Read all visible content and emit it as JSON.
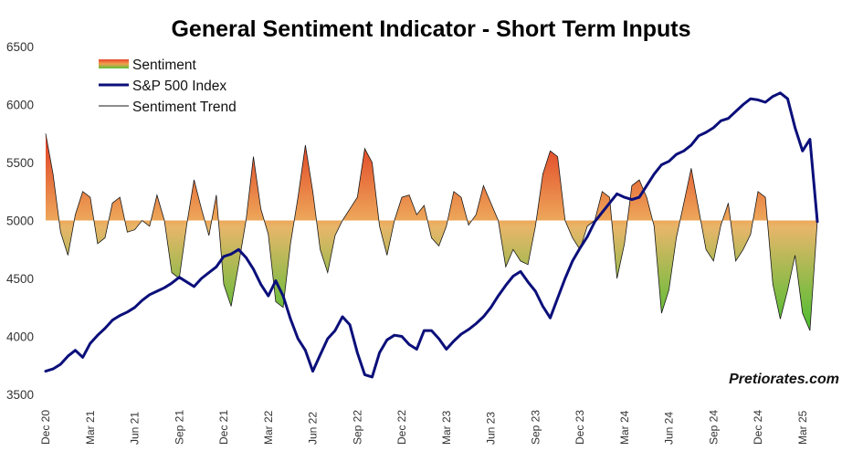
{
  "chart_data": {
    "type": "line",
    "title": "General Sentiment Indicator - Short Term Inputs",
    "watermark": "Pretiorates.com",
    "ylim": [
      3500,
      6500
    ],
    "yticks": [
      3500,
      4000,
      4500,
      5000,
      5500,
      6000,
      6500
    ],
    "sentiment_baseline": 5000,
    "xlim": [
      "2020-12",
      "2025-04"
    ],
    "xticks": [
      {
        "x": 0,
        "label": "Dec 20"
      },
      {
        "x": 3,
        "label": "Mar 21"
      },
      {
        "x": 6,
        "label": "Jun 21"
      },
      {
        "x": 9,
        "label": "Sep 21"
      },
      {
        "x": 12,
        "label": "Dec 21"
      },
      {
        "x": 15,
        "label": "Mar 22"
      },
      {
        "x": 18,
        "label": "Jun 22"
      },
      {
        "x": 21,
        "label": "Sep 22"
      },
      {
        "x": 24,
        "label": "Dec 22"
      },
      {
        "x": 27,
        "label": "Mar 23"
      },
      {
        "x": 30,
        "label": "Jun 23"
      },
      {
        "x": 33,
        "label": "Sep 23"
      },
      {
        "x": 36,
        "label": "Dec 23"
      },
      {
        "x": 39,
        "label": "Mar 24"
      },
      {
        "x": 42,
        "label": "Jun 24"
      },
      {
        "x": 45,
        "label": "Sep 24"
      },
      {
        "x": 48,
        "label": "Dec 24"
      },
      {
        "x": 51,
        "label": "Mar 25"
      }
    ],
    "legend": {
      "placement": "top-left",
      "entries": [
        "Sentiment",
        "S&P 500 Index",
        "Sentiment Trend"
      ]
    },
    "colors": {
      "sp500": "#0b0f7a",
      "trend": "#1a1a1a",
      "sentiment_high": "#e0341e",
      "sentiment_mid": "#eda85a",
      "sentiment_low": "#3cbf2a",
      "legend_swatch": [
        "#e8452a",
        "#f0a050",
        "#5dc13a"
      ]
    },
    "series": [
      {
        "name": "S&P 500 Index",
        "x": [
          0,
          0.5,
          1,
          1.5,
          2,
          2.5,
          3,
          3.5,
          4,
          4.5,
          5,
          5.5,
          6,
          6.5,
          7,
          7.5,
          8,
          8.5,
          9,
          9.5,
          10,
          10.5,
          11,
          11.5,
          12,
          12.5,
          13,
          13.5,
          14,
          14.5,
          15,
          15.5,
          16,
          16.5,
          17,
          17.5,
          18,
          18.5,
          19,
          19.5,
          20,
          20.5,
          21,
          21.5,
          22,
          22.5,
          23,
          23.5,
          24,
          24.5,
          25,
          25.5,
          26,
          26.5,
          27,
          27.5,
          28,
          28.5,
          29,
          29.5,
          30,
          30.5,
          31,
          31.5,
          32,
          32.5,
          33,
          33.5,
          34,
          34.5,
          35,
          35.5,
          36,
          36.5,
          37,
          37.5,
          38,
          38.5,
          39,
          39.5,
          40,
          40.5,
          41,
          41.5,
          42,
          42.5,
          43,
          43.5,
          44,
          44.5,
          45,
          45.5,
          46,
          46.5,
          47,
          47.5,
          48,
          48.5,
          49,
          49.5,
          50,
          50.5,
          51,
          51.5,
          52
        ],
        "values": [
          3700,
          3720,
          3760,
          3830,
          3880,
          3820,
          3940,
          4010,
          4070,
          4140,
          4180,
          4210,
          4250,
          4310,
          4360,
          4390,
          4420,
          4460,
          4510,
          4470,
          4430,
          4500,
          4550,
          4600,
          4690,
          4710,
          4750,
          4680,
          4580,
          4450,
          4350,
          4480,
          4350,
          4150,
          3980,
          3880,
          3700,
          3840,
          3980,
          4050,
          4170,
          4100,
          3860,
          3670,
          3650,
          3860,
          3970,
          4010,
          4000,
          3930,
          3890,
          4050,
          4050,
          3980,
          3890,
          3960,
          4020,
          4060,
          4110,
          4170,
          4250,
          4350,
          4440,
          4520,
          4560,
          4470,
          4390,
          4260,
          4160,
          4330,
          4500,
          4650,
          4760,
          4860,
          4990,
          5070,
          5150,
          5230,
          5200,
          5180,
          5200,
          5300,
          5400,
          5480,
          5510,
          5570,
          5600,
          5650,
          5730,
          5760,
          5800,
          5860,
          5880,
          5940,
          6000,
          6050,
          6040,
          6020,
          6070,
          6100,
          6050,
          5800,
          5600,
          5700,
          4990
        ]
      },
      {
        "name": "Sentiment",
        "x": [
          0,
          0.5,
          1,
          1.5,
          2,
          2.5,
          3,
          3.5,
          4,
          4.5,
          5,
          5.5,
          6,
          6.5,
          7,
          7.5,
          8,
          8.5,
          9,
          9.5,
          10,
          10.5,
          11,
          11.5,
          12,
          12.5,
          13,
          13.5,
          14,
          14.5,
          15,
          15.5,
          16,
          16.5,
          17,
          17.5,
          18,
          18.5,
          19,
          19.5,
          20,
          20.5,
          21,
          21.5,
          22,
          22.5,
          23,
          23.5,
          24,
          24.5,
          25,
          25.5,
          26,
          26.5,
          27,
          27.5,
          28,
          28.5,
          29,
          29.5,
          30,
          30.5,
          31,
          31.5,
          32,
          32.5,
          33,
          33.5,
          34,
          34.5,
          35,
          35.5,
          36,
          36.5,
          37,
          37.5,
          38,
          38.5,
          39,
          39.5,
          40,
          40.5,
          41,
          41.5,
          42,
          42.5,
          43,
          43.5,
          44,
          44.5,
          45,
          45.5,
          46,
          46.5,
          47,
          47.5,
          48,
          48.5,
          49,
          49.5,
          50,
          50.5,
          51,
          51.5,
          52
        ],
        "values": [
          5750,
          5400,
          4900,
          4700,
          5050,
          5250,
          5200,
          4800,
          4850,
          5150,
          5200,
          4900,
          4920,
          5000,
          4950,
          5220,
          5000,
          4550,
          4500,
          4960,
          5350,
          5100,
          4870,
          5220,
          4450,
          4260,
          4620,
          5000,
          5550,
          5100,
          4880,
          4300,
          4250,
          4800,
          5200,
          5650,
          5250,
          4750,
          4550,
          4870,
          5000,
          5100,
          5200,
          5620,
          5500,
          4950,
          4700,
          5000,
          5200,
          5220,
          5050,
          5130,
          4850,
          4780,
          4950,
          5250,
          5200,
          4960,
          5050,
          5300,
          5150,
          5000,
          4600,
          4750,
          4650,
          4620,
          4950,
          5400,
          5600,
          5550,
          5000,
          4850,
          4750,
          4950,
          5000,
          5250,
          5200,
          4500,
          4800,
          5300,
          5350,
          5200,
          4950,
          4200,
          4400,
          4850,
          5150,
          5450,
          5100,
          4750,
          4650,
          4960,
          5150,
          4650,
          4750,
          4880,
          5250,
          5200,
          4450,
          4150,
          4400,
          4700,
          4200,
          4050,
          5000
        ]
      },
      {
        "name": "Sentiment Trend",
        "x": [
          0,
          0.5,
          1,
          1.5,
          2,
          2.5,
          3,
          3.5,
          4,
          4.5,
          5,
          5.5,
          6,
          6.5,
          7,
          7.5,
          8,
          8.5,
          9,
          9.5,
          10,
          10.5,
          11,
          11.5,
          12,
          12.5,
          13,
          13.5,
          14,
          14.5,
          15,
          15.5,
          16,
          16.5,
          17,
          17.5,
          18,
          18.5,
          19,
          19.5,
          20,
          20.5,
          21,
          21.5,
          22,
          22.5,
          23,
          23.5,
          24,
          24.5,
          25,
          25.5,
          26,
          26.5,
          27,
          27.5,
          28,
          28.5,
          29,
          29.5,
          30,
          30.5,
          31,
          31.5,
          32,
          32.5,
          33,
          33.5,
          34,
          34.5,
          35,
          35.5,
          36,
          36.5,
          37,
          37.5,
          38,
          38.5,
          39,
          39.5,
          40,
          40.5,
          41,
          41.5,
          42,
          42.5,
          43,
          43.5,
          44,
          44.5,
          45,
          45.5,
          46,
          46.5,
          47,
          47.5,
          48,
          48.5,
          49,
          49.5,
          50,
          50.5,
          51,
          51.5,
          52
        ],
        "values": [
          5750,
          5400,
          4900,
          4700,
          5050,
          5250,
          5200,
          4800,
          4850,
          5150,
          5200,
          4900,
          4920,
          5000,
          4950,
          5220,
          5000,
          4550,
          4500,
          4960,
          5350,
          5100,
          4870,
          5220,
          4450,
          4260,
          4620,
          5000,
          5550,
          5100,
          4880,
          4300,
          4250,
          4800,
          5200,
          5650,
          5250,
          4750,
          4550,
          4870,
          5000,
          5100,
          5200,
          5620,
          5500,
          4950,
          4700,
          5000,
          5200,
          5220,
          5050,
          5130,
          4850,
          4780,
          4950,
          5250,
          5200,
          4960,
          5050,
          5300,
          5150,
          5000,
          4600,
          4750,
          4650,
          4620,
          4950,
          5400,
          5600,
          5550,
          5000,
          4850,
          4750,
          4950,
          5000,
          5250,
          5200,
          4500,
          4800,
          5300,
          5350,
          5200,
          4950,
          4200,
          4400,
          4850,
          5150,
          5450,
          5100,
          4750,
          4650,
          4960,
          5150,
          4650,
          4750,
          4880,
          5250,
          5200,
          4450,
          4150,
          4400,
          4700,
          4200,
          4050,
          5000
        ]
      }
    ]
  }
}
